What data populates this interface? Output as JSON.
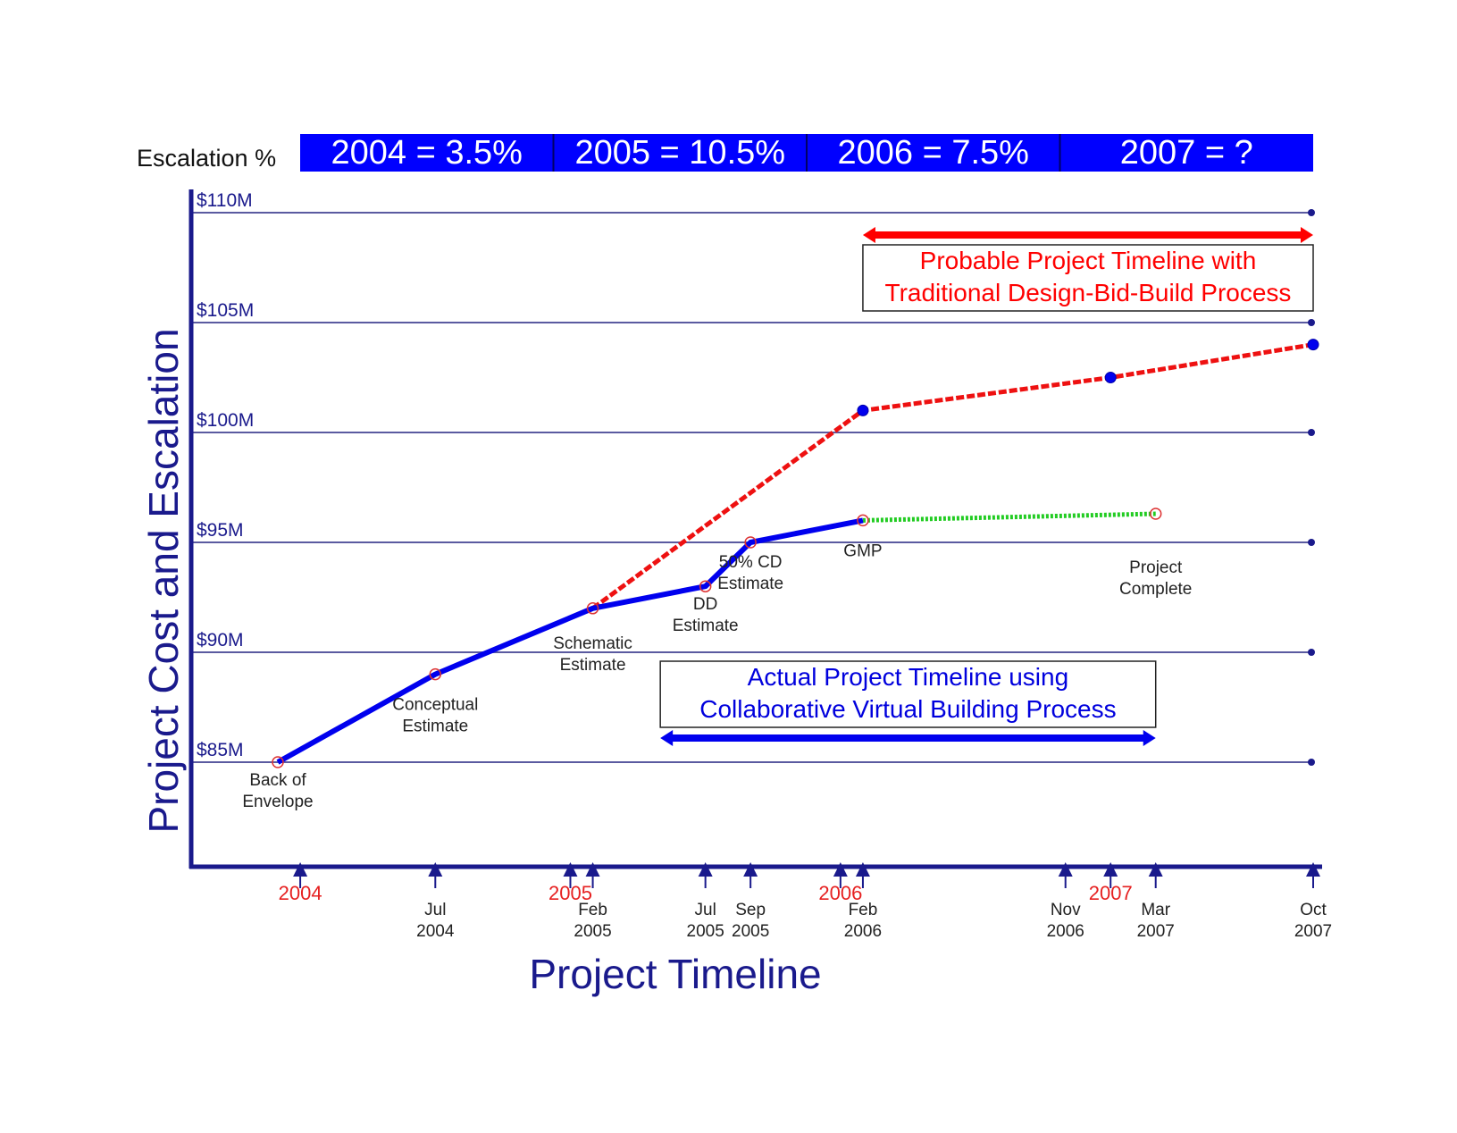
{
  "escalation": {
    "label": "Escalation %",
    "cells": [
      "2004 = 3.5%",
      "2005 = 10.5%",
      "2006 = 7.5%",
      "2007 = ?"
    ],
    "bar_color": "#0000ff"
  },
  "chart_data": {
    "type": "line",
    "title": "",
    "xlabel": "Project Timeline",
    "ylabel": "Project Cost and Escalation",
    "ylim": [
      80,
      110
    ],
    "y_ticks": [
      {
        "value": 110,
        "label": "$110M"
      },
      {
        "value": 105,
        "label": "$105M"
      },
      {
        "value": 100,
        "label": "$100M"
      },
      {
        "value": 95,
        "label": "$95M"
      },
      {
        "value": 90,
        "label": "$90M"
      },
      {
        "value": 85,
        "label": "$85M"
      }
    ],
    "year_ticks": [
      {
        "x": 2004.0,
        "label": "2004"
      },
      {
        "x": 2005.0,
        "label": "2005"
      },
      {
        "x": 2006.0,
        "label": "2006"
      },
      {
        "x": 2007.0,
        "label": "2007"
      }
    ],
    "date_ticks": [
      {
        "x": 2004.5,
        "label": [
          "Jul",
          "2004"
        ]
      },
      {
        "x": 2005.083,
        "label": [
          "Feb",
          "2005"
        ]
      },
      {
        "x": 2005.5,
        "label": [
          "Jul",
          "2005"
        ]
      },
      {
        "x": 2005.667,
        "label": [
          "Sep",
          "2005"
        ]
      },
      {
        "x": 2006.083,
        "label": [
          "Feb",
          "2006"
        ]
      },
      {
        "x": 2006.833,
        "label": [
          "Nov",
          "2006"
        ]
      },
      {
        "x": 2007.167,
        "label": [
          "Mar",
          "2007"
        ]
      },
      {
        "x": 2007.75,
        "label": [
          "Oct",
          "2007"
        ]
      }
    ],
    "series": [
      {
        "key": "actual",
        "color": "#0000ee",
        "style": "solid",
        "points": [
          {
            "x": 2003.917,
            "y": 85.0
          },
          {
            "x": 2004.5,
            "y": 89.0
          },
          {
            "x": 2005.083,
            "y": 92.0
          },
          {
            "x": 2005.5,
            "y": 93.0
          },
          {
            "x": 2005.667,
            "y": 95.0
          },
          {
            "x": 2006.083,
            "y": 96.0
          }
        ]
      },
      {
        "key": "traditional",
        "color": "#ee1111",
        "style": "dashed",
        "points": [
          {
            "x": 2005.083,
            "y": 92.0
          },
          {
            "x": 2006.083,
            "y": 101.0
          },
          {
            "x": 2007.0,
            "y": 102.5
          },
          {
            "x": 2007.75,
            "y": 104.0
          }
        ]
      },
      {
        "key": "projected",
        "color": "#22cc22",
        "style": "dotted",
        "points": [
          {
            "x": 2006.083,
            "y": 96.0
          },
          {
            "x": 2007.167,
            "y": 96.3
          }
        ]
      }
    ],
    "annotations": [
      {
        "x": 2003.917,
        "y": 85.0,
        "lines": [
          "Back of",
          "Envelope"
        ]
      },
      {
        "x": 2004.5,
        "y": 89.0,
        "lines": [
          "Conceptual",
          "Estimate"
        ]
      },
      {
        "x": 2005.083,
        "y": 92.0,
        "lines": [
          "Schematic",
          "Estimate"
        ]
      },
      {
        "x": 2005.5,
        "y": 93.0,
        "lines": [
          "DD",
          "Estimate"
        ]
      },
      {
        "x": 2005.667,
        "y": 95.0,
        "lines": [
          "50% CD",
          "Estimate"
        ]
      },
      {
        "x": 2006.083,
        "y": 96.0,
        "lines": [
          "GMP"
        ]
      },
      {
        "x": 2007.167,
        "y": 96.3,
        "lines": [
          "Project",
          "Complete"
        ]
      }
    ],
    "callouts": {
      "traditional": {
        "lines": [
          "Probable Project Timeline with",
          "Traditional Design-Bid-Build Process"
        ],
        "from_x": 2006.083,
        "to_x": 2007.75
      },
      "actual": {
        "lines": [
          "Actual Project Timeline using",
          "Collaborative Virtual Building Process"
        ],
        "from_x": 2005.333,
        "to_x": 2007.167
      }
    },
    "grid": true,
    "legend": "none"
  }
}
